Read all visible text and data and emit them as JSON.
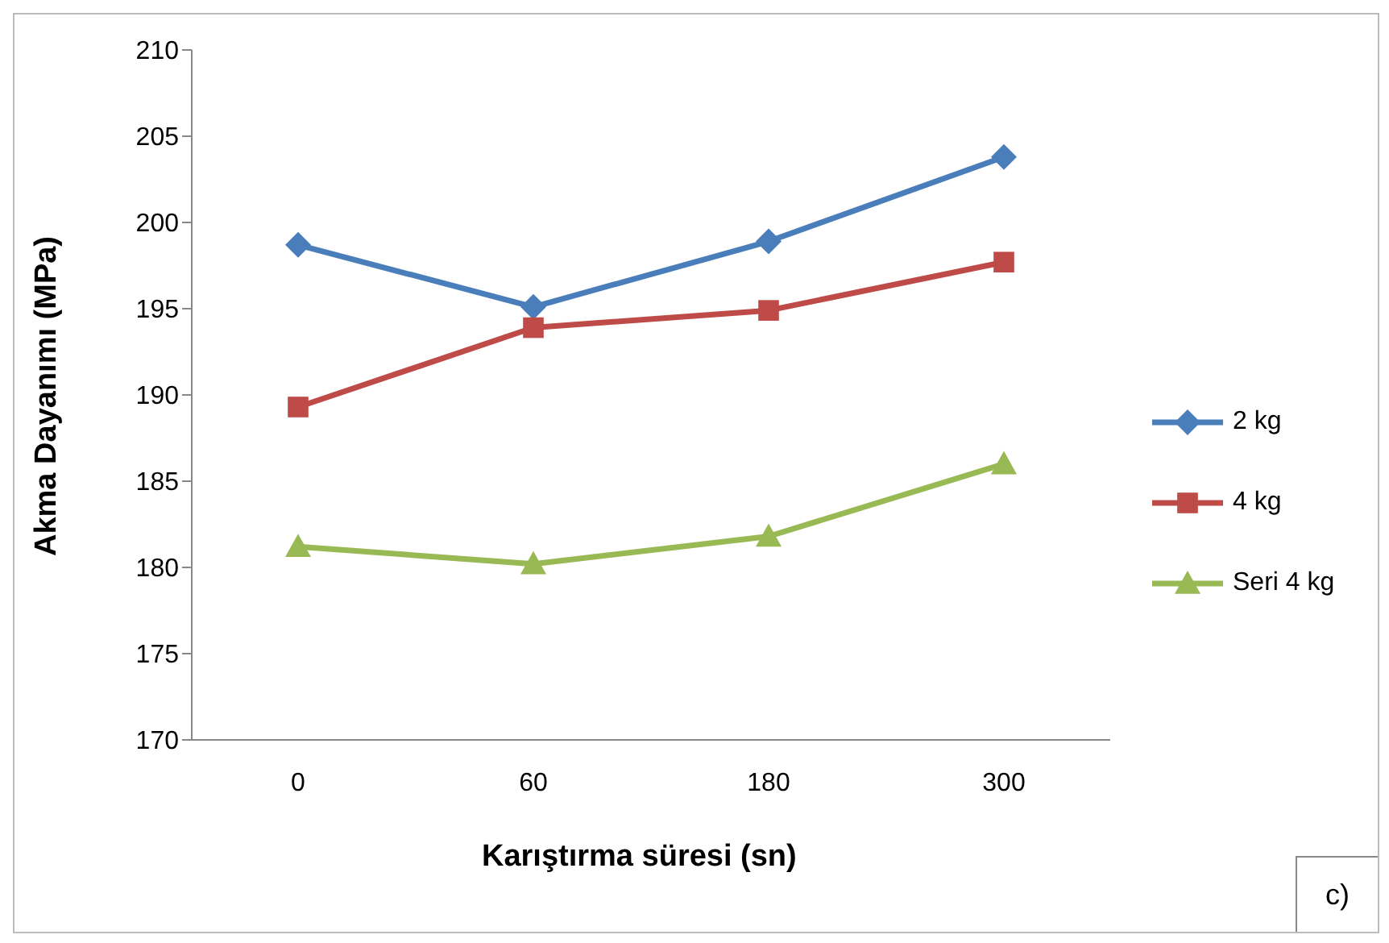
{
  "chart_data": {
    "type": "line",
    "xlabel": "Karıştırma süresi (sn)",
    "ylabel": "Akma Dayanımı (MPa)",
    "categories": [
      "0",
      "60",
      "180",
      "300"
    ],
    "series": [
      {
        "name": "2 kg",
        "color": "#4a7ebb",
        "marker": "diamond",
        "values": [
          198.7,
          195.1,
          198.9,
          203.8
        ]
      },
      {
        "name": "4 kg",
        "color": "#be4b48",
        "marker": "square",
        "values": [
          189.3,
          193.9,
          194.9,
          197.7
        ]
      },
      {
        "name": "Seri 4 kg",
        "color": "#98b954",
        "marker": "triangle",
        "values": [
          181.2,
          180.2,
          181.8,
          186.0
        ]
      }
    ],
    "ylim": [
      170,
      210
    ],
    "yticks": [
      170,
      175,
      180,
      185,
      190,
      195,
      200,
      205,
      210
    ],
    "legend": "right",
    "line_style": "solid",
    "annotations": [
      "c)"
    ]
  }
}
